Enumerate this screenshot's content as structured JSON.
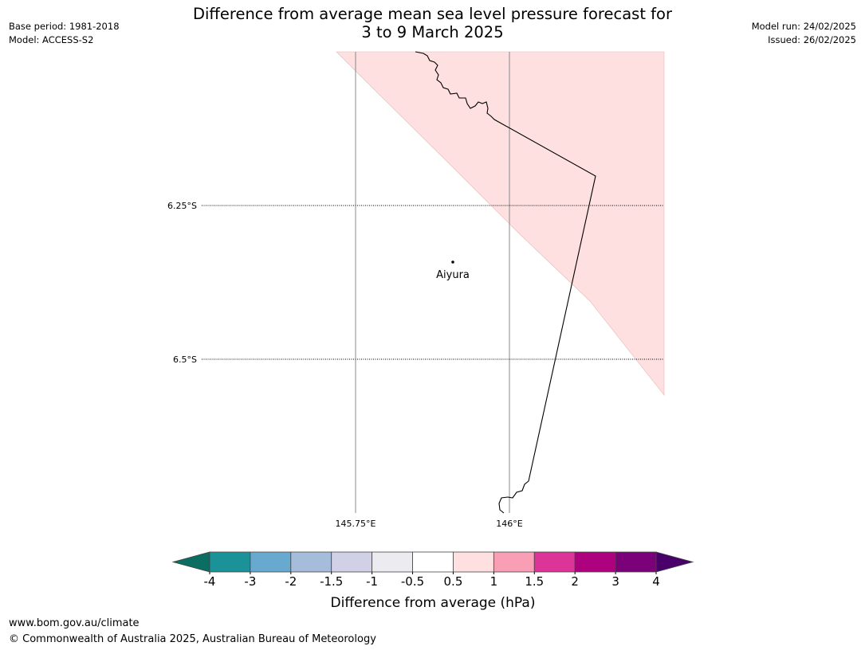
{
  "header": {
    "title_line1": "Difference from average mean sea level pressure forecast for",
    "title_line2": "3 to 9 March 2025",
    "base_period": "Base period: 1981-2018",
    "model": "Model: ACCESS-S2",
    "model_run": "Model run: 24/02/2025",
    "issued": "Issued: 26/02/2025"
  },
  "map": {
    "lat_labels": [
      "6.25°S",
      "6.5°S"
    ],
    "lon_labels": [
      "145.75°E",
      "146°E"
    ],
    "place": {
      "name": "Aiyura"
    },
    "shaded_colour": "#fde0df"
  },
  "colorbar": {
    "label": "Difference from average (hPa)",
    "ticks": [
      "-4",
      "-3",
      "-2",
      "-1.5",
      "-1",
      "-0.5",
      "0.5",
      "1",
      "1.5",
      "2",
      "3",
      "4"
    ],
    "colors": [
      "#1b9297",
      "#67a9cf",
      "#a6bcdb",
      "#d0d1e6",
      "#ecebf0",
      "#ffffff",
      "#fde0df",
      "#f99fb5",
      "#dd3497",
      "#ae017e",
      "#7a0177"
    ],
    "low_extension_color": "#0a6e62",
    "high_extension_color": "#49006a"
  },
  "footer": {
    "url": "www.bom.gov.au/climate",
    "copyright": "© Commonwealth of Australia 2025, Australian Bureau of Meteorology"
  }
}
